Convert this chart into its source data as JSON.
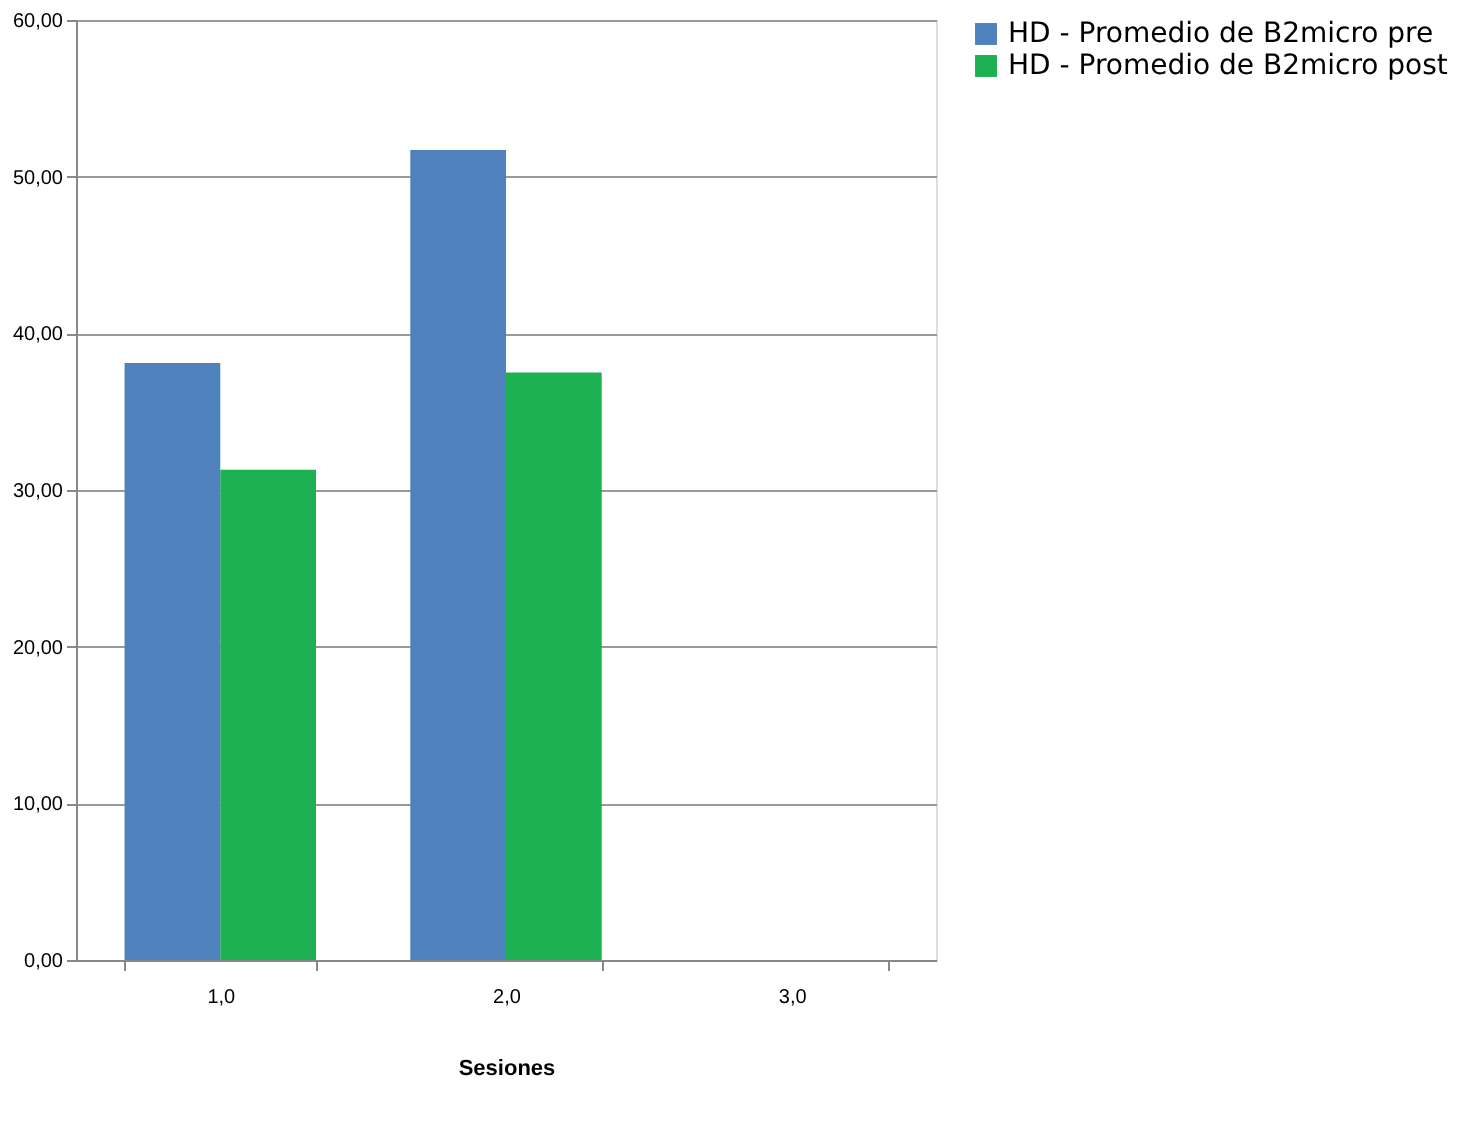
{
  "chart_data": {
    "type": "bar",
    "xlabel": "Sesiones",
    "categories": [
      "1,0",
      "2,0",
      "3,0"
    ],
    "series": [
      {
        "name": "HD - Promedio de B2micro pre",
        "color": "#4f81bd",
        "values": [
          38.1,
          51.7,
          null
        ]
      },
      {
        "name": "HD - Promedio de B2micro post",
        "color": "#1db153",
        "values": [
          31.3,
          37.5,
          null
        ]
      }
    ],
    "ylim": [
      0,
      60
    ],
    "yticks": [
      {
        "value": 0,
        "label": "0,00"
      },
      {
        "value": 10,
        "label": "10,00"
      },
      {
        "value": 20,
        "label": "20,00"
      },
      {
        "value": 30,
        "label": "30,00"
      },
      {
        "value": 40,
        "label": "40,00"
      },
      {
        "value": 50,
        "label": "50,00"
      },
      {
        "value": 60,
        "label": "60,00"
      }
    ],
    "grid": "y",
    "legend": "top right"
  }
}
